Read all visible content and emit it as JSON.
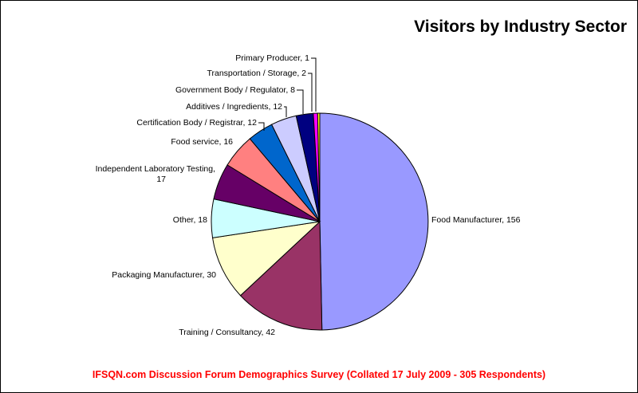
{
  "chart_data": {
    "type": "pie",
    "title": "Visitors by Industry Sector",
    "footer": "IFSQN.com Discussion Forum Demographics Survey (Collated 17 July 2009 - 305 Respondents)",
    "legend": "none",
    "slices": [
      {
        "label": "Food Manufacturer",
        "value": 156,
        "color": "#9999ff"
      },
      {
        "label": "Training / Consultancy",
        "value": 42,
        "color": "#993366"
      },
      {
        "label": "Packaging Manufacturer",
        "value": 30,
        "color": "#ffffcc"
      },
      {
        "label": "Other",
        "value": 18,
        "color": "#ccffff"
      },
      {
        "label": "Independent Laboratory Testing",
        "value": 17,
        "color": "#660066"
      },
      {
        "label": "Food service",
        "value": 16,
        "color": "#ff8080"
      },
      {
        "label": "Certification Body / Registrar",
        "value": 12,
        "color": "#0066cc"
      },
      {
        "label": "Additives / Ingredients",
        "value": 12,
        "color": "#ccccff"
      },
      {
        "label": "Government Body / Regulator",
        "value": 8,
        "color": "#000080"
      },
      {
        "label": "Transportation / Storage",
        "value": 2,
        "color": "#ff00ff"
      },
      {
        "label": "Primary Producer",
        "value": 1,
        "color": "#ffff00"
      }
    ],
    "label_texts": [
      [
        "Food Manufacturer, 156"
      ],
      [
        "Training / Consultancy, 42"
      ],
      [
        "Packaging Manufacturer, 30"
      ],
      [
        "Other, 18"
      ],
      [
        "Independent Laboratory Testing,",
        "17"
      ],
      [
        "Food service, 16"
      ],
      [
        "Certification Body / Registrar, 12"
      ],
      [
        "Additives / Ingredients, 12"
      ],
      [
        "Government Body / Regulator, 8"
      ],
      [
        "Transportation / Storage, 2"
      ],
      [
        "Primary Producer, 1"
      ]
    ]
  }
}
